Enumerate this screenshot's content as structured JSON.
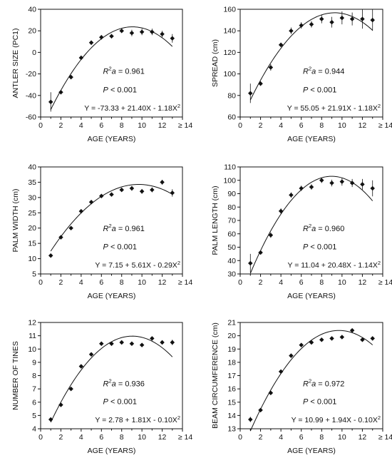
{
  "chart_data": [
    {
      "type": "scatter",
      "xlabel": "AGE (YEARS)",
      "ylabel": "ANTLER SIZE (PC1)",
      "xlim": [
        0,
        14
      ],
      "xticks": [
        "0",
        "2",
        "4",
        "6",
        "8",
        "10",
        "12",
        "≥ 14"
      ],
      "ylim": [
        -60,
        40
      ],
      "yticks": [
        "-60",
        "-40",
        "-20",
        "0",
        "20",
        "40"
      ],
      "series": [
        {
          "x": [
            1,
            2,
            3,
            4,
            5,
            6,
            7,
            8,
            9,
            10,
            11,
            12,
            13
          ],
          "y": [
            -46,
            -37,
            -23,
            -5,
            9,
            14,
            15,
            20,
            18,
            19,
            19,
            17,
            13
          ],
          "err": [
            9,
            2,
            2,
            2,
            2,
            2,
            2,
            2,
            3,
            3,
            3,
            3,
            4
          ]
        }
      ],
      "fit": {
        "a": -73.33,
        "b": 21.4,
        "c": -1.18
      },
      "r2_label": "R",
      "r2_sup": "2",
      "r2_sub": "a",
      "r2_value": " = 0.961",
      "p_label": "P",
      "p_value": " < 0.001",
      "equation": "Y = -73.33 + 21.40X - 1.18X",
      "equation_sup": "2"
    },
    {
      "type": "scatter",
      "xlabel": "AGE (YEARS)",
      "ylabel": "SPREAD (cm)",
      "xlim": [
        0,
        14
      ],
      "xticks": [
        "0",
        "2",
        "4",
        "6",
        "8",
        "10",
        "12",
        "≥ 14"
      ],
      "ylim": [
        60,
        160
      ],
      "yticks": [
        "60",
        "80",
        "100",
        "120",
        "140",
        "160"
      ],
      "series": [
        {
          "x": [
            1,
            2,
            3,
            4,
            5,
            6,
            7,
            8,
            9,
            10,
            11,
            12,
            13
          ],
          "y": [
            82,
            91,
            106,
            127,
            140,
            145,
            146,
            151,
            148,
            152,
            151,
            151,
            150
          ],
          "err": [
            9,
            2,
            3,
            2,
            3,
            3,
            3,
            4,
            5,
            6,
            6,
            9,
            10
          ]
        }
      ],
      "fit": {
        "a": 55.05,
        "b": 21.91,
        "c": -1.18
      },
      "r2_label": "R",
      "r2_sup": "2",
      "r2_sub": "a",
      "r2_value": " = 0.944",
      "p_label": "P",
      "p_value": " < 0.001",
      "equation": "Y = 55.05 + 21.91X - 1.18X",
      "equation_sup": "2"
    },
    {
      "type": "scatter",
      "xlabel": "AGE (YEARS)",
      "ylabel": "PALM WIDTH (cm)",
      "xlim": [
        0,
        14
      ],
      "xticks": [
        "0",
        "2",
        "4",
        "6",
        "8",
        "10",
        "12",
        "≥ 14"
      ],
      "ylim": [
        5,
        40
      ],
      "yticks": [
        "5",
        "10",
        "15",
        "20",
        "25",
        "30",
        "35",
        "40"
      ],
      "series": [
        {
          "x": [
            1,
            2,
            3,
            4,
            5,
            6,
            7,
            8,
            9,
            10,
            11,
            12,
            13
          ],
          "y": [
            11,
            17,
            20,
            25.5,
            28.5,
            30.5,
            31,
            32.5,
            33,
            32,
            32.5,
            35,
            31.5
          ],
          "err": [
            0.5,
            0.5,
            0.5,
            0.5,
            0.5,
            0.5,
            0.5,
            0.5,
            0.8,
            0.8,
            0.8,
            0.8,
            1.2
          ]
        }
      ],
      "fit": {
        "a": 7.15,
        "b": 5.61,
        "c": -0.29
      },
      "r2_label": "R",
      "r2_sup": "2",
      "r2_sub": "a",
      "r2_value": " = 0.961",
      "p_label": "P",
      "p_value": " < 0.001",
      "equation": "Y = 7.15 + 5.61X - 0.29X",
      "equation_sup": "2"
    },
    {
      "type": "scatter",
      "xlabel": "AGE (YEARS)",
      "ylabel": "PALM LENGTH (cm)",
      "xlim": [
        0,
        14
      ],
      "xticks": [
        "0",
        "2",
        "4",
        "6",
        "8",
        "10",
        "12",
        "≥ 14"
      ],
      "ylim": [
        30,
        110
      ],
      "yticks": [
        "30",
        "40",
        "50",
        "60",
        "70",
        "80",
        "90",
        "100",
        "110"
      ],
      "series": [
        {
          "x": [
            1,
            2,
            3,
            4,
            5,
            6,
            7,
            8,
            9,
            10,
            11,
            12,
            13
          ],
          "y": [
            38,
            46,
            59,
            77,
            89,
            94,
            95,
            100,
            98,
            99,
            98,
            97,
            94
          ],
          "err": [
            7,
            1.5,
            2,
            2,
            2,
            2,
            2,
            2,
            2.5,
            3,
            3,
            4,
            6
          ]
        }
      ],
      "fit": {
        "a": 11.04,
        "b": 20.48,
        "c": -1.14
      },
      "r2_label": "R",
      "r2_sup": "2",
      "r2_sub": "a",
      "r2_value": " = 0.960",
      "p_label": "P",
      "p_value": " < 0.001",
      "equation": "Y = 11.04 + 20.48X - 1.14X",
      "equation_sup": "2"
    },
    {
      "type": "scatter",
      "xlabel": "AGE (YEARS)",
      "ylabel": "NUMBER OF TINES",
      "xlim": [
        0,
        14
      ],
      "xticks": [
        "0",
        "2",
        "4",
        "6",
        "8",
        "10",
        "12",
        "≥ 14"
      ],
      "ylim": [
        4,
        12
      ],
      "yticks": [
        "4",
        "5",
        "6",
        "7",
        "8",
        "9",
        "10",
        "11",
        "12"
      ],
      "series": [
        {
          "x": [
            1,
            2,
            3,
            4,
            5,
            6,
            7,
            8,
            9,
            10,
            11,
            12,
            13
          ],
          "y": [
            4.7,
            5.8,
            7.0,
            8.7,
            9.6,
            10.4,
            10.4,
            10.5,
            10.4,
            10.3,
            10.8,
            10.5,
            10.5
          ],
          "err": [
            0.15,
            0.08,
            0.08,
            0.08,
            0.08,
            0.08,
            0.08,
            0.08,
            0.08,
            0.08,
            0.08,
            0.1,
            0.2
          ]
        }
      ],
      "fit": {
        "a": 2.78,
        "b": 1.81,
        "c": -0.1
      },
      "r2_label": "R",
      "r2_sup": "2",
      "r2_sub": "a",
      "r2_value": " = 0.936",
      "p_label": "P",
      "p_value": " < 0.001",
      "equation": "Y = 2.78 + 1.81X - 0.10X",
      "equation_sup": "2"
    },
    {
      "type": "scatter",
      "xlabel": "AGE (YEARS)",
      "ylabel": "BEAM CIRCUMFERENCE (cm)",
      "xlim": [
        0,
        14
      ],
      "xticks": [
        "0",
        "2",
        "4",
        "6",
        "8",
        "10",
        "12",
        "≥ 14"
      ],
      "ylim": [
        13,
        21
      ],
      "yticks": [
        "13",
        "14",
        "15",
        "16",
        "17",
        "18",
        "19",
        "20",
        "21"
      ],
      "series": [
        {
          "x": [
            1,
            2,
            3,
            4,
            5,
            6,
            7,
            8,
            9,
            10,
            11,
            12,
            13
          ],
          "y": [
            13.7,
            14.4,
            15.7,
            17.3,
            18.5,
            19.3,
            19.5,
            19.7,
            19.8,
            19.9,
            20.4,
            19.7,
            19.8
          ],
          "err": [
            0.2,
            0.08,
            0.08,
            0.08,
            0.08,
            0.08,
            0.08,
            0.08,
            0.08,
            0.08,
            0.08,
            0.08,
            0.1
          ]
        }
      ],
      "fit": {
        "a": 10.99,
        "b": 1.94,
        "c": -0.1
      },
      "r2_label": "R",
      "r2_sup": "2",
      "r2_sub": "a",
      "r2_value": " = 0.972",
      "p_label": "P",
      "p_value": " < 0.001",
      "equation": "Y = 10.99 + 1.94X - 0.10X",
      "equation_sup": "2"
    }
  ]
}
